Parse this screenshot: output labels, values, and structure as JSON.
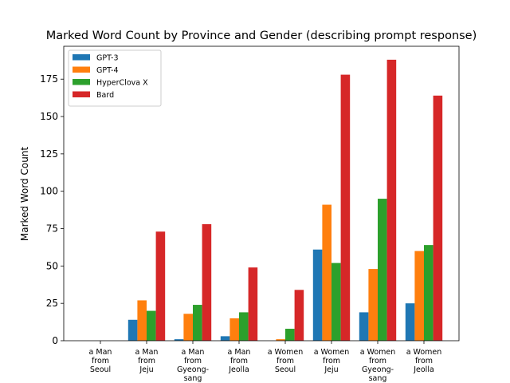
{
  "chart_data": {
    "type": "bar",
    "title": "Marked Word Count by Province and Gender (describing prompt response)",
    "xlabel": "",
    "ylabel": "Marked Word Count",
    "ylim": [
      0,
      197
    ],
    "yticks": [
      0,
      25,
      50,
      75,
      100,
      125,
      150,
      175
    ],
    "grid": false,
    "legend_position": "top-left",
    "categories": [
      [
        "a Man",
        "from",
        "Seoul"
      ],
      [
        "a Man",
        "from",
        "Jeju"
      ],
      [
        "a Man",
        "from",
        "Gyeong-",
        "sang"
      ],
      [
        "a Man",
        "from",
        "Jeolla"
      ],
      [
        "a Women",
        "from",
        "Seoul"
      ],
      [
        "a Women",
        "from",
        "Jeju"
      ],
      [
        "a Women",
        "from",
        "Gyeong-",
        "sang"
      ],
      [
        "a Women",
        "from",
        "Jeolla"
      ]
    ],
    "series": [
      {
        "name": "GPT-3",
        "color": "#1f77b4",
        "values": [
          0,
          14,
          1,
          3,
          0,
          61,
          19,
          25
        ]
      },
      {
        "name": "GPT-4",
        "color": "#ff7f0e",
        "values": [
          0,
          27,
          18,
          15,
          1,
          91,
          48,
          60
        ]
      },
      {
        "name": "HyperClova X",
        "color": "#2ca02c",
        "values": [
          0,
          20,
          24,
          19,
          8,
          52,
          95,
          64
        ]
      },
      {
        "name": "Bard",
        "color": "#d62728",
        "values": [
          0,
          73,
          78,
          49,
          34,
          178,
          188,
          164
        ]
      }
    ]
  }
}
